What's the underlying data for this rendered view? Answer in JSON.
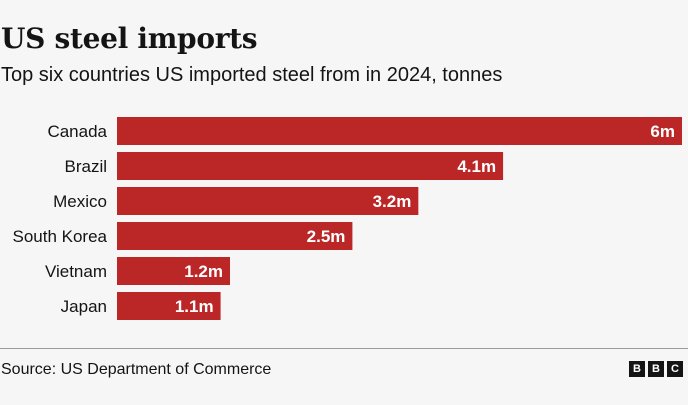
{
  "title": "US steel imports",
  "subtitle": "Top six countries US imported steel from in 2024, tonnes",
  "source": "Source: US Department of Commerce",
  "logo": [
    "B",
    "B",
    "C"
  ],
  "colors": {
    "bar": "#bb2727",
    "label": "#ffffff",
    "category": "#141414",
    "background": "#f6f6f6"
  },
  "chart_data": {
    "type": "bar",
    "orientation": "horizontal",
    "categories": [
      "Canada",
      "Brazil",
      "Mexico",
      "South Korea",
      "Vietnam",
      "Japan"
    ],
    "values": [
      6.0,
      4.1,
      3.2,
      2.5,
      1.2,
      1.1
    ],
    "value_labels": [
      "6m",
      "4.1m",
      "3.2m",
      "2.5m",
      "1.2m",
      "1.1m"
    ],
    "unit": "million tonnes",
    "xlim": [
      0,
      6
    ],
    "grid": false,
    "legend": "none"
  }
}
